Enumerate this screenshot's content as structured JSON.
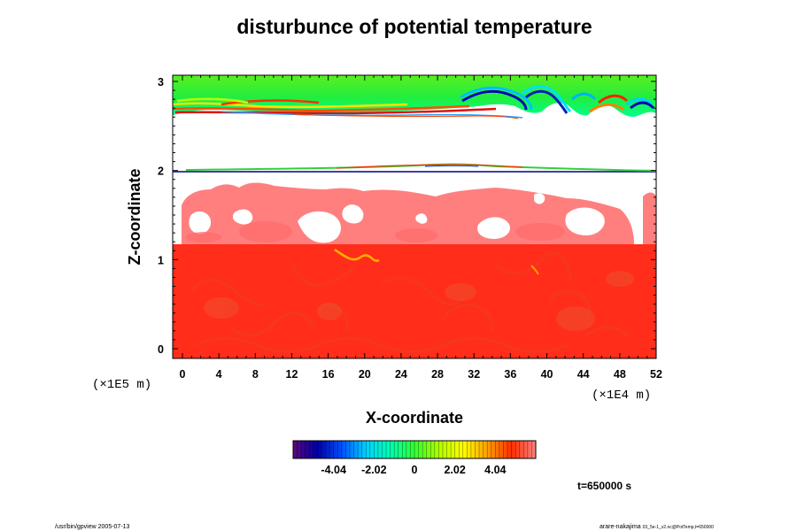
{
  "chart_data": {
    "type": "heatmap",
    "title": "disturbunce of potential temperature",
    "xlabel": "X-coordinate",
    "ylabel": "Z-coordinate",
    "x_ticks": [
      "0",
      "4",
      "8",
      "12",
      "16",
      "20",
      "24",
      "28",
      "32",
      "36",
      "40",
      "44",
      "48",
      "52"
    ],
    "y_ticks": [
      "0",
      "1",
      "2",
      "3"
    ],
    "x_unit": "(×1E4 m)",
    "y_unit": "(×1E5 m)",
    "xlim": [
      0,
      52
    ],
    "ylim": [
      0,
      3
    ],
    "colorbar": {
      "ticks": [
        "-4.04",
        "-2.02",
        "0",
        "2.02",
        "4.04"
      ],
      "range": [
        -6.06,
        6.06
      ],
      "colors": [
        "#5a0a78",
        "#0000a0",
        "#0050ff",
        "#00d0ff",
        "#00ffb0",
        "#30ff30",
        "#b0ff00",
        "#ffff00",
        "#ffa000",
        "#ff3000",
        "#ff8080"
      ]
    },
    "regions": [
      {
        "name": "upper-layer",
        "z_range": [
          2.65,
          3.05
        ],
        "value_hint": "near 0 (green), wave crests"
      },
      {
        "name": "white-gap",
        "z_range": [
          2.05,
          2.65
        ],
        "value_hint": "out of range"
      },
      {
        "name": "thin-interface",
        "z_range": [
          1.98,
          2.05
        ],
        "value_hint": "thin mixed band"
      },
      {
        "name": "pink-layer",
        "z_range": [
          1.15,
          1.98
        ],
        "value_hint": "about 4.5"
      },
      {
        "name": "red-layer",
        "z_range": [
          -0.05,
          1.15
        ],
        "value_hint": "about 4.0"
      }
    ]
  },
  "annotations": {
    "time": "t=650000 s",
    "footer_left": "/usr/bin/gpview 2005-07-13",
    "footer_right": "arare-nakajima",
    "footer_right_small": "03_5e-1_v2.nc@PotTemp,t=650000"
  }
}
